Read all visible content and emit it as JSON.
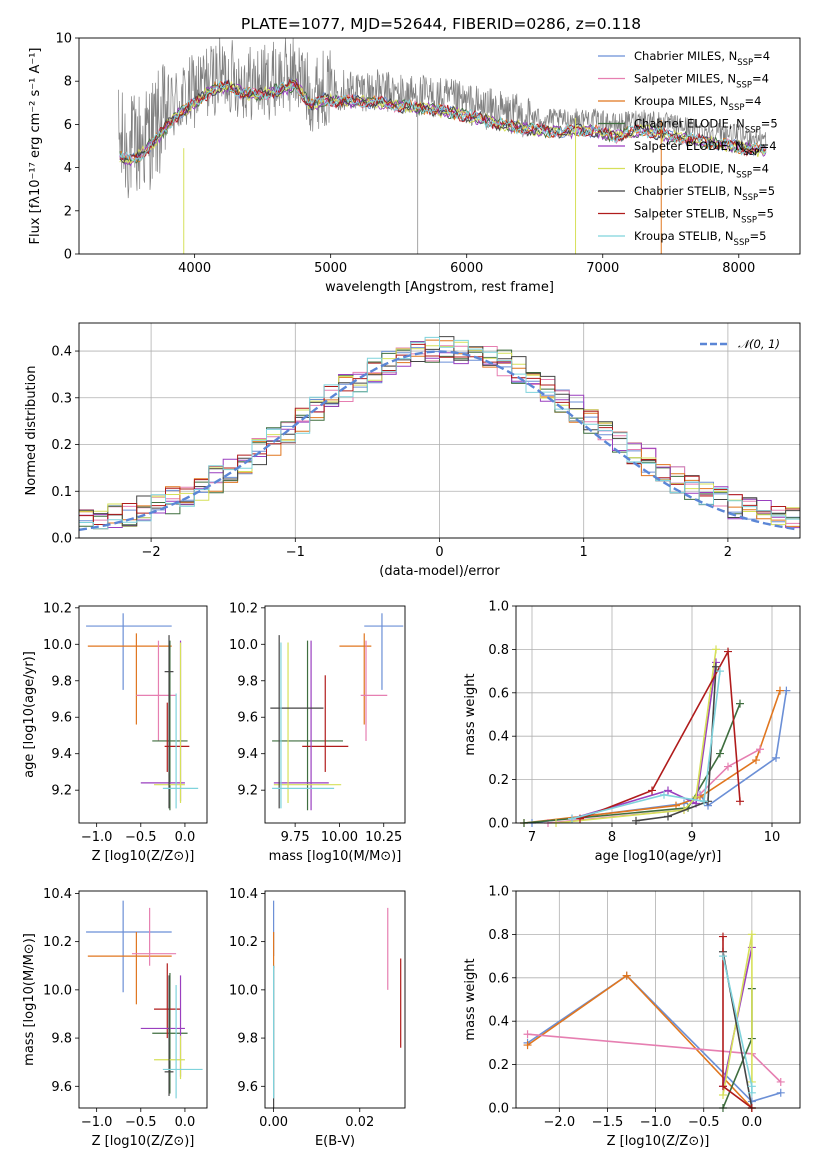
{
  "figure": {
    "title": "PLATE=1077, MJD=52644, FIBERID=0286, z=0.118"
  },
  "chart_data": [
    {
      "id": "spectrum",
      "type": "line",
      "title": "PLATE=1077, MJD=52644, FIBERID=0286, z=0.118",
      "xlabel": "wavelength [Angstrom, rest frame]",
      "ylabel": "Flux [fλ10⁻¹⁷ erg cm⁻² s⁻¹ A⁻¹]",
      "xlim": [
        3150,
        8450
      ],
      "ylim": [
        0,
        10
      ],
      "xticks": [
        4000,
        5000,
        6000,
        7000,
        8000
      ],
      "yticks": [
        0,
        2,
        4,
        6,
        8,
        10
      ],
      "legend_position": "top-right",
      "data_color": "#808080",
      "continuum": {
        "x": [
          3450,
          3550,
          3650,
          3750,
          3850,
          3950,
          4050,
          4150,
          4250,
          4350,
          4450,
          4550,
          4650,
          4750,
          4850,
          4950,
          5100,
          5300,
          5500,
          5700,
          5900,
          6100,
          6300,
          6500,
          6700,
          6900,
          7100,
          7300,
          7500,
          7700,
          7900,
          8100,
          8200
        ],
        "y": [
          5.0,
          4.9,
          5.4,
          6.1,
          6.9,
          7.3,
          7.8,
          8.2,
          8.3,
          8.0,
          7.9,
          8.0,
          8.2,
          8.4,
          7.4,
          7.7,
          7.6,
          7.6,
          7.4,
          7.3,
          7.1,
          6.8,
          6.5,
          6.3,
          6.2,
          6.3,
          6.0,
          6.3,
          6.0,
          5.8,
          5.6,
          5.4,
          5.3
        ]
      },
      "series": [
        {
          "name": "Chabrier MILES, N_SSP=4",
          "color": "#6b8fd6"
        },
        {
          "name": "Salpeter MILES, N_SSP=4",
          "color": "#e67fb1"
        },
        {
          "name": "Kroupa MILES, N_SSP=4",
          "color": "#e0761f"
        },
        {
          "name": "Chabrier ELODIE, N_SSP=5",
          "color": "#3f6e3f"
        },
        {
          "name": "Salpeter ELODIE, N_SSP=4",
          "color": "#9a3fbf"
        },
        {
          "name": "Kroupa ELODIE, N_SSP=4",
          "color": "#d6e05a"
        },
        {
          "name": "Chabrier STELIB, N_SSP=5",
          "color": "#454545"
        },
        {
          "name": "Salpeter STELIB, N_SSP=5",
          "color": "#b01c1c"
        },
        {
          "name": "Kroupa STELIB, N_SSP=5",
          "color": "#7fd3dc"
        }
      ]
    },
    {
      "id": "residuals",
      "type": "line",
      "xlabel": "(data-model)/error",
      "ylabel": "Normed distribution",
      "xlim": [
        -2.5,
        2.5
      ],
      "ylim": [
        0,
        0.46
      ],
      "xticks": [
        -2,
        -1,
        0,
        1,
        2
      ],
      "yticks": [
        0.0,
        0.1,
        0.2,
        0.3,
        0.4
      ],
      "grid": true,
      "legend_position": "top-right",
      "reference": {
        "name": "𝒩(0, 1)",
        "color": "#5b86d6",
        "style": "dashed",
        "mean": 0,
        "sigma": 1
      }
    },
    {
      "id": "age_vs_Z",
      "type": "scatter",
      "xlabel": "Z [log10(Z/Z⊙)]",
      "ylabel": "age  [log10(age/yr)]",
      "xlim": [
        -1.2,
        0.25
      ],
      "ylim": [
        9.02,
        10.21
      ],
      "xticks": [
        -1.0,
        -0.5,
        0.0
      ],
      "yticks": [
        9.2,
        9.4,
        9.6,
        9.8,
        10.0,
        10.2
      ],
      "grid": false,
      "points": [
        {
          "color": "#6b8fd6",
          "x": -0.7,
          "xerr": [
            0.42,
            0.55
          ],
          "y": 10.1,
          "yerr": [
            0.35,
            0.07
          ]
        },
        {
          "color": "#e0761f",
          "x": -0.55,
          "xerr": [
            0.55,
            0.4
          ],
          "y": 9.99,
          "yerr": [
            0.43,
            0.07
          ]
        },
        {
          "color": "#e67fb1",
          "x": -0.3,
          "xerr": [
            0.25,
            0.2
          ],
          "y": 9.72,
          "yerr": [
            0.25,
            0.3
          ]
        },
        {
          "color": "#3f6e3f",
          "x": -0.17,
          "xerr": [
            0.2,
            0.2
          ],
          "y": 9.47,
          "yerr": [
            0.38,
            0.55
          ]
        },
        {
          "color": "#b01c1c",
          "x": -0.2,
          "xerr": [
            0.03,
            0.25
          ],
          "y": 9.44,
          "yerr": [
            0.14,
            0.24
          ]
        },
        {
          "color": "#9a3fbf",
          "x": -0.05,
          "xerr": [
            0.45,
            0.05
          ],
          "y": 9.24,
          "yerr": [
            0.1,
            0.78
          ]
        },
        {
          "color": "#d6e05a",
          "x": -0.05,
          "xerr": [
            0.3,
            0.05
          ],
          "y": 9.23,
          "yerr": [
            0.1,
            0.78
          ]
        },
        {
          "color": "#454545",
          "x": -0.18,
          "xerr": [
            0.05,
            0.05
          ],
          "y": 9.85,
          "yerr": [
            0.75,
            0.2
          ]
        },
        {
          "color": "#7fd3dc",
          "x": -0.1,
          "xerr": [
            0.15,
            0.25
          ],
          "y": 9.21,
          "yerr": [
            0.11,
            0.52
          ]
        }
      ]
    },
    {
      "id": "age_vs_mass",
      "type": "scatter",
      "xlabel": "mass [log10(M/M⊙)]",
      "ylabel": "",
      "xlim": [
        9.58,
        10.37
      ],
      "ylim": [
        9.02,
        10.21
      ],
      "xticks": [
        9.75,
        10.0,
        10.25
      ],
      "yticks": [
        9.2,
        9.4,
        9.6,
        9.8,
        10.0,
        10.2
      ],
      "grid": false,
      "points": [
        {
          "color": "#6b8fd6",
          "x": 10.24,
          "xerr": [
            0.1,
            0.12
          ],
          "y": 10.1,
          "yerr": [
            0.35,
            0.07
          ]
        },
        {
          "color": "#e0761f",
          "x": 10.14,
          "xerr": [
            0.14,
            0.04
          ],
          "y": 9.99,
          "yerr": [
            0.43,
            0.07
          ]
        },
        {
          "color": "#e67fb1",
          "x": 10.15,
          "xerr": [
            0.03,
            0.12
          ],
          "y": 9.72,
          "yerr": [
            0.25,
            0.3
          ]
        },
        {
          "color": "#3f6e3f",
          "x": 9.82,
          "xerr": [
            0.2,
            0.2
          ],
          "y": 9.47,
          "yerr": [
            0.38,
            0.55
          ]
        },
        {
          "color": "#b01c1c",
          "x": 9.92,
          "xerr": [
            0.13,
            0.13
          ],
          "y": 9.44,
          "yerr": [
            0.14,
            0.39
          ]
        },
        {
          "color": "#9a3fbf",
          "x": 9.84,
          "xerr": [
            0.21,
            0.1
          ],
          "y": 9.24,
          "yerr": [
            0.15,
            0.78
          ]
        },
        {
          "color": "#d6e05a",
          "x": 9.71,
          "xerr": [
            0.08,
            0.3
          ],
          "y": 9.23,
          "yerr": [
            0.1,
            0.78
          ]
        },
        {
          "color": "#454545",
          "x": 9.66,
          "xerr": [
            0.05,
            0.25
          ],
          "y": 9.65,
          "yerr": [
            0.55,
            0.4
          ]
        },
        {
          "color": "#7fd3dc",
          "x": 9.67,
          "xerr": [
            0.05,
            0.3
          ],
          "y": 9.21,
          "yerr": [
            0.11,
            0.8
          ]
        }
      ]
    },
    {
      "id": "mass_weight_vs_age",
      "type": "line",
      "xlabel": "age  [log10(age/yr)]",
      "ylabel": "mass weight",
      "xlim": [
        6.8,
        10.35
      ],
      "ylim": [
        0,
        1.0
      ],
      "xticks": [
        7,
        8,
        9,
        10
      ],
      "yticks": [
        0.0,
        0.2,
        0.4,
        0.6,
        0.8,
        1.0
      ],
      "grid": true,
      "series": [
        {
          "color": "#6b8fd6",
          "x": [
            7.0,
            8.9,
            9.1,
            9.2,
            10.05,
            10.18
          ],
          "y": [
            0.0,
            0.09,
            0.13,
            0.08,
            0.3,
            0.61
          ]
        },
        {
          "color": "#e0761f",
          "x": [
            6.9,
            8.8,
            9.1,
            9.8,
            10.1
          ],
          "y": [
            0.0,
            0.08,
            0.12,
            0.29,
            0.61
          ]
        },
        {
          "color": "#e67fb1",
          "x": [
            7.2,
            8.9,
            9.45,
            9.85
          ],
          "y": [
            0.0,
            0.06,
            0.26,
            0.34
          ]
        },
        {
          "color": "#3f6e3f",
          "x": [
            6.9,
            8.95,
            9.35,
            9.6
          ],
          "y": [
            0.0,
            0.07,
            0.32,
            0.55
          ]
        },
        {
          "color": "#9a3fbf",
          "x": [
            7.5,
            8.7,
            9.05,
            9.3
          ],
          "y": [
            0.02,
            0.15,
            0.09,
            0.74
          ]
        },
        {
          "color": "#d6e05a",
          "x": [
            7.3,
            8.9,
            9.05,
            9.3
          ],
          "y": [
            0.0,
            0.06,
            0.12,
            0.8
          ]
        },
        {
          "color": "#454545",
          "x": [
            8.3,
            8.7,
            9.2,
            9.3
          ],
          "y": [
            0.01,
            0.03,
            0.1,
            0.72
          ]
        },
        {
          "color": "#b01c1c",
          "x": [
            7.6,
            8.5,
            9.45,
            9.6
          ],
          "y": [
            0.02,
            0.15,
            0.79,
            0.1
          ]
        },
        {
          "color": "#7fd3dc",
          "x": [
            7.5,
            8.65,
            9.15,
            9.35
          ],
          "y": [
            0.02,
            0.13,
            0.1,
            0.7
          ]
        }
      ]
    },
    {
      "id": "mass_vs_Z",
      "type": "scatter",
      "xlabel": "Z [log10(Z/Z⊙)]",
      "ylabel": "mass [log10(M/M⊙)]",
      "xlim": [
        -1.2,
        0.25
      ],
      "ylim": [
        9.51,
        10.41
      ],
      "xticks": [
        -1.0,
        -0.5,
        0.0
      ],
      "yticks": [
        9.6,
        9.8,
        10.0,
        10.2,
        10.4
      ],
      "grid": false,
      "points": [
        {
          "color": "#6b8fd6",
          "x": -0.7,
          "xerr": [
            0.42,
            0.55
          ],
          "y": 10.24,
          "yerr": [
            0.25,
            0.13
          ]
        },
        {
          "color": "#e0761f",
          "x": -0.55,
          "xerr": [
            0.55,
            0.4
          ],
          "y": 10.14,
          "yerr": [
            0.2,
            0.1
          ]
        },
        {
          "color": "#e67fb1",
          "x": -0.4,
          "xerr": [
            0.2,
            0.3
          ],
          "y": 10.15,
          "yerr": [
            0.05,
            0.19
          ]
        },
        {
          "color": "#3f6e3f",
          "x": -0.17,
          "xerr": [
            0.2,
            0.2
          ],
          "y": 9.82,
          "yerr": [
            0.25,
            0.25
          ]
        },
        {
          "color": "#b01c1c",
          "x": -0.2,
          "xerr": [
            0.15,
            0.15
          ],
          "y": 9.92,
          "yerr": [
            0.12,
            0.19
          ]
        },
        {
          "color": "#9a3fbf",
          "x": -0.05,
          "xerr": [
            0.45,
            0.05
          ],
          "y": 9.84,
          "yerr": [
            0.2,
            0.22
          ]
        },
        {
          "color": "#d6e05a",
          "x": -0.05,
          "xerr": [
            0.3,
            0.05
          ],
          "y": 9.71,
          "yerr": [
            0.08,
            0.1
          ]
        },
        {
          "color": "#454545",
          "x": -0.18,
          "xerr": [
            0.05,
            0.05
          ],
          "y": 9.66,
          "yerr": [
            0.1,
            0.4
          ]
        },
        {
          "color": "#7fd3dc",
          "x": -0.1,
          "xerr": [
            0.15,
            0.3
          ],
          "y": 9.67,
          "yerr": [
            0.12,
            0.35
          ]
        }
      ]
    },
    {
      "id": "mass_vs_ebv",
      "type": "scatter",
      "xlabel": "E(B-V)",
      "ylabel": "",
      "xlim": [
        -0.002,
        0.0305
      ],
      "ylim": [
        9.51,
        10.41
      ],
      "xticks": [
        0.0,
        0.02
      ],
      "yticks": [
        9.6,
        9.8,
        10.0,
        10.2,
        10.4
      ],
      "grid": false,
      "points": [
        {
          "color": "#6b8fd6",
          "x": 0.0,
          "y": 10.24,
          "yerr": [
            0.1,
            0.13
          ]
        },
        {
          "color": "#e0761f",
          "x": 0.0,
          "y": 10.14,
          "yerr": [
            0.05,
            0.1
          ]
        },
        {
          "color": "#e67fb1",
          "x": 0.0265,
          "y": 10.15,
          "yerr": [
            0.15,
            0.19
          ]
        },
        {
          "color": "#b01c1c",
          "x": 0.0295,
          "y": 9.92,
          "yerr": [
            0.16,
            0.21
          ]
        },
        {
          "color": "#454545",
          "x": 0.0,
          "y": 9.8,
          "yerr": [
            0.3,
            0.3
          ]
        },
        {
          "color": "#7fd3dc",
          "x": 0.0,
          "y": 9.8,
          "yerr": [
            0.25,
            0.3
          ]
        }
      ]
    },
    {
      "id": "mass_weight_vs_Z",
      "type": "line",
      "xlabel": "Z [log10(Z/Z⊙)]",
      "ylabel": "mass weight",
      "xlim": [
        -2.45,
        0.5
      ],
      "ylim": [
        0,
        1.0
      ],
      "xticks": [
        -2.0,
        -1.5,
        -1.0,
        -0.5,
        0.0
      ],
      "yticks": [
        0.0,
        0.2,
        0.4,
        0.6,
        0.8,
        1.0
      ],
      "grid": true,
      "series": [
        {
          "color": "#6b8fd6",
          "x": [
            -2.33,
            -1.3,
            0.0,
            0.3
          ],
          "y": [
            0.3,
            0.61,
            0.03,
            0.07
          ]
        },
        {
          "color": "#e0761f",
          "x": [
            -2.33,
            -1.3,
            0.0
          ],
          "y": [
            0.29,
            0.61,
            0.0
          ]
        },
        {
          "color": "#e67fb1",
          "x": [
            -2.33,
            0.0,
            0.3
          ],
          "y": [
            0.34,
            0.25,
            0.12
          ]
        },
        {
          "color": "#3f6e3f",
          "x": [
            -0.3,
            0.0,
            0.0
          ],
          "y": [
            0.0,
            0.32,
            0.55
          ]
        },
        {
          "color": "#9a3fbf",
          "x": [
            -0.3,
            0.0
          ],
          "y": [
            0.1,
            0.74
          ]
        },
        {
          "color": "#d6e05a",
          "x": [
            -0.3,
            0.0,
            0.0
          ],
          "y": [
            0.06,
            0.8,
            0.12
          ]
        },
        {
          "color": "#454545",
          "x": [
            -0.3,
            0.0
          ],
          "y": [
            0.72,
            0.0
          ]
        },
        {
          "color": "#b01c1c",
          "x": [
            -0.3,
            -0.3,
            0.0
          ],
          "y": [
            0.79,
            0.1,
            0.0
          ]
        },
        {
          "color": "#7fd3dc",
          "x": [
            -0.3,
            0.0,
            0.0
          ],
          "y": [
            0.7,
            0.1,
            0.07
          ]
        }
      ]
    }
  ]
}
